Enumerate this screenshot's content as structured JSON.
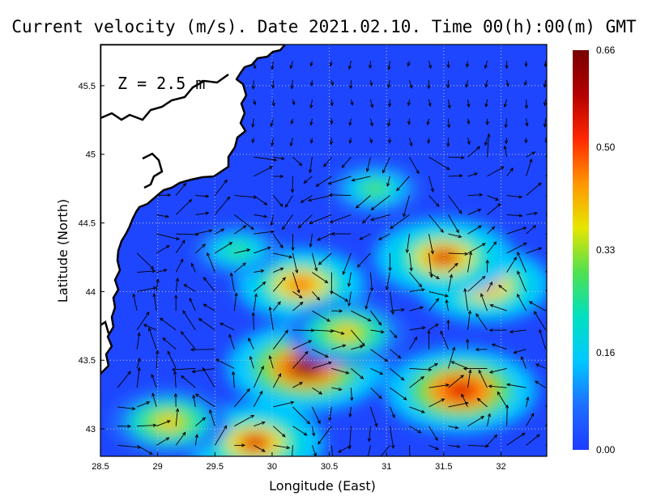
{
  "chart_data": {
    "type": "heatmap",
    "title": "Current velocity (m/s). Date 2021.02.10. Time 00(h):00(m) GMT",
    "annotation": "Z = 2.5 m",
    "xlabel": "Longitude (East)",
    "ylabel": "Latitude (North)",
    "xlim": [
      28.5,
      32.4
    ],
    "ylim": [
      42.8,
      45.8
    ],
    "xticks": [
      "28.5",
      "29",
      "29.5",
      "30",
      "30.5",
      "31",
      "31.5",
      "32"
    ],
    "yticks": [
      "43",
      "43.5",
      "44",
      "44.5",
      "45",
      "45.5"
    ],
    "grid": true,
    "colorbar": {
      "ticks": [
        "0.00",
        "0.16",
        "0.33",
        "0.50",
        "0.66"
      ],
      "range": [
        0.0,
        0.66
      ],
      "colors": [
        "#1e3cff",
        "#1e6eff",
        "#00c8ff",
        "#00e0c0",
        "#50e050",
        "#e6e600",
        "#ff9600",
        "#ff2800",
        "#b40000",
        "#780000"
      ]
    },
    "land_color": "#ffffff",
    "coast_color": "#000000",
    "vector_color": "#000000",
    "speed_hotspots": [
      {
        "lon": 30.3,
        "lat": 43.45,
        "speed": 0.66
      },
      {
        "lon": 31.65,
        "lat": 43.28,
        "speed": 0.62
      },
      {
        "lon": 31.85,
        "lat": 44.05,
        "speed": 0.52
      },
      {
        "lon": 31.5,
        "lat": 44.25,
        "speed": 0.55
      },
      {
        "lon": 30.25,
        "lat": 44.05,
        "speed": 0.5
      },
      {
        "lon": 29.85,
        "lat": 42.9,
        "speed": 0.55
      },
      {
        "lon": 30.65,
        "lat": 43.7,
        "speed": 0.45
      },
      {
        "lon": 29.1,
        "lat": 43.05,
        "speed": 0.45
      },
      {
        "lon": 30.9,
        "lat": 44.75,
        "speed": 0.3
      },
      {
        "lon": 29.7,
        "lat": 44.3,
        "speed": 0.28
      }
    ]
  }
}
